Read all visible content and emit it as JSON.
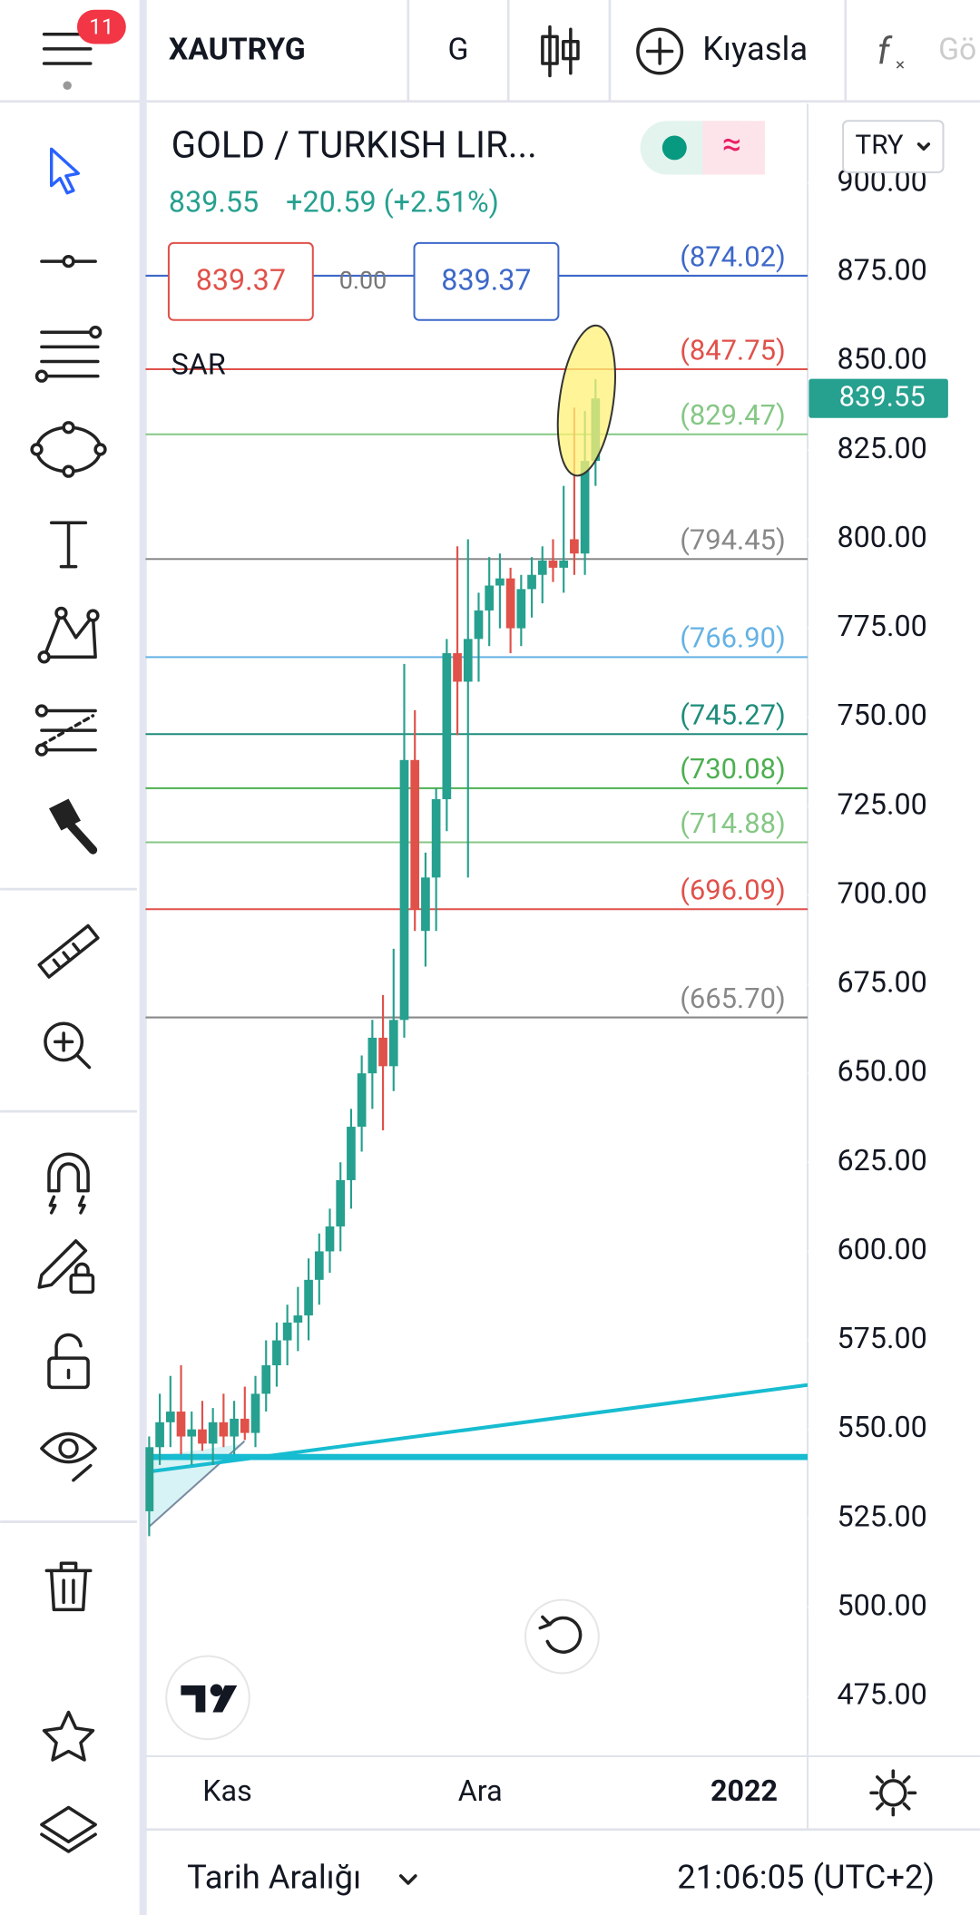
{
  "top_bar": {
    "badge": "11",
    "symbol": "XAUTRYG",
    "interval": "G",
    "compare": "Kıyasla",
    "indicators": "Gö"
  },
  "chart_data": {
    "type": "candlestick",
    "title": "GOLD / TURKISH LIR...",
    "last": 839.55,
    "change": "+20.59 (+2.51%)",
    "sell": 839.37,
    "spread": "0.00",
    "buy": 839.37,
    "indicator": "SAR",
    "currency": "TRY",
    "up_color": "#26a08f",
    "down_color": "#e0514a",
    "ylim": [
      458.2,
      922.3
    ],
    "yticks": [
      {
        "value": 900,
        "label": "900.00"
      },
      {
        "value": 875,
        "label": "875.00"
      },
      {
        "value": 850,
        "label": "850.00"
      },
      {
        "value": 825,
        "label": "825.00"
      },
      {
        "value": 800,
        "label": "800.00"
      },
      {
        "value": 775,
        "label": "775.00"
      },
      {
        "value": 750,
        "label": "750.00"
      },
      {
        "value": 725,
        "label": "725.00"
      },
      {
        "value": 700,
        "label": "700.00"
      },
      {
        "value": 675,
        "label": "675.00"
      },
      {
        "value": 650,
        "label": "650.00"
      },
      {
        "value": 625,
        "label": "625.00"
      },
      {
        "value": 600,
        "label": "600.00"
      },
      {
        "value": 575,
        "label": "575.00"
      },
      {
        "value": 550,
        "label": "550.00"
      },
      {
        "value": 525,
        "label": "525.00"
      },
      {
        "value": 500,
        "label": "500.00"
      },
      {
        "value": 475,
        "label": "475.00"
      }
    ],
    "x_labels": [
      "Kas",
      "Ara",
      "2022"
    ],
    "levels": [
      {
        "value": 874.02,
        "label": "(874.02)",
        "color": "#3d68c9"
      },
      {
        "value": 847.75,
        "label": "(847.75)",
        "color": "#e0514a"
      },
      {
        "value": 829.47,
        "label": "(829.47)",
        "color": "#85c785"
      },
      {
        "value": 794.45,
        "label": "(794.45)",
        "color": "#888888"
      },
      {
        "value": 766.9,
        "label": "(766.90)",
        "color": "#64b2e4"
      },
      {
        "value": 745.27,
        "label": "(745.27)",
        "color": "#1e8c7a"
      },
      {
        "value": 730.08,
        "label": "(730.08)",
        "color": "#4caf50"
      },
      {
        "value": 714.88,
        "label": "(714.88)",
        "color": "#85c785"
      },
      {
        "value": 696.09,
        "label": "(696.09)",
        "color": "#e0514a"
      },
      {
        "value": 665.7,
        "label": "(665.70)",
        "color": "#888888"
      }
    ],
    "ohlc": [
      [
        527,
        548,
        520,
        545
      ],
      [
        545,
        560,
        540,
        552
      ],
      [
        552,
        565,
        545,
        555
      ],
      [
        555,
        568,
        543,
        548
      ],
      [
        548,
        555,
        540,
        550
      ],
      [
        550,
        558,
        544,
        546
      ],
      [
        546,
        556,
        540,
        552
      ],
      [
        552,
        560,
        545,
        548
      ],
      [
        548,
        558,
        543,
        553
      ],
      [
        553,
        562,
        547,
        549
      ],
      [
        549,
        565,
        545,
        560
      ],
      [
        560,
        575,
        555,
        568
      ],
      [
        568,
        580,
        562,
        575
      ],
      [
        575,
        585,
        568,
        580
      ],
      [
        580,
        590,
        572,
        582
      ],
      [
        582,
        598,
        575,
        592
      ],
      [
        592,
        605,
        585,
        600
      ],
      [
        600,
        612,
        594,
        607
      ],
      [
        607,
        625,
        600,
        620
      ],
      [
        620,
        640,
        612,
        635
      ],
      [
        635,
        655,
        628,
        650
      ],
      [
        650,
        665,
        640,
        660
      ],
      [
        660,
        672,
        634,
        652
      ],
      [
        652,
        685,
        645,
        665
      ],
      [
        665,
        765,
        660,
        738
      ],
      [
        738,
        752,
        690,
        696
      ],
      [
        690,
        712,
        680,
        705
      ],
      [
        705,
        730,
        690,
        727
      ],
      [
        727,
        772,
        718,
        768
      ],
      [
        768,
        798,
        745,
        760
      ],
      [
        760,
        800,
        705,
        772
      ],
      [
        772,
        785,
        760,
        780
      ],
      [
        780,
        795,
        770,
        787
      ],
      [
        787,
        796,
        775,
        789
      ],
      [
        789,
        792,
        768,
        775
      ],
      [
        775,
        790,
        770,
        786
      ],
      [
        786,
        795,
        778,
        790
      ],
      [
        790,
        798,
        782,
        794
      ],
      [
        794,
        800,
        788,
        792
      ],
      [
        792,
        815,
        785,
        794
      ],
      [
        800,
        837,
        790,
        796
      ],
      [
        796,
        836,
        790,
        822
      ],
      [
        822,
        845,
        815,
        839.55
      ]
    ]
  },
  "bottom_bar": {
    "range": "Tarih Aralığı",
    "time": "21:06:05 (UTC+2)"
  }
}
